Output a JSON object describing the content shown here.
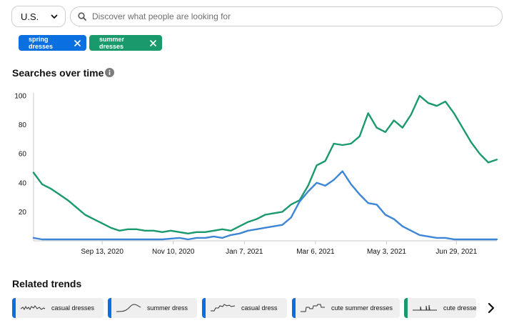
{
  "region": {
    "label": "U.S."
  },
  "search": {
    "placeholder": "Discover what people are looking for"
  },
  "chips": [
    {
      "label": "spring dresses",
      "color": "#0a6fe0"
    },
    {
      "label": "summer dresses",
      "color": "#1a9a6c"
    }
  ],
  "searches_section": {
    "title": "Searches over time"
  },
  "related_section": {
    "title": "Related trends"
  },
  "related_trends": [
    {
      "label": "casual dresses",
      "color": "#0a6fe0"
    },
    {
      "label": "summer dress",
      "color": "#0a6fe0"
    },
    {
      "label": "casual dress",
      "color": "#0a6fe0"
    },
    {
      "label": "cute summer dresses",
      "color": "#0a6fe0"
    },
    {
      "label": "cute dresses",
      "color": "#1a9a6c"
    }
  ],
  "chart_data": {
    "type": "line",
    "x_tick_labels": [
      "Sep 13, 2020",
      "Nov 10, 2020",
      "Jan 7, 2021",
      "Mar 6, 2021",
      "May 3, 2021",
      "Jun 29, 2021"
    ],
    "y_ticks": [
      20,
      40,
      60,
      80,
      100
    ],
    "ylim": [
      0,
      100
    ],
    "xlim": [
      "2020-07-19",
      "2021-08-01"
    ],
    "grid": false,
    "series": [
      {
        "name": "summer dresses",
        "color": "#1a9a6c",
        "points": [
          [
            "2020-07-19",
            47
          ],
          [
            "2020-07-26",
            39
          ],
          [
            "2020-08-02",
            36
          ],
          [
            "2020-08-09",
            32
          ],
          [
            "2020-08-16",
            28
          ],
          [
            "2020-08-23",
            23
          ],
          [
            "2020-08-30",
            18
          ],
          [
            "2020-09-06",
            15
          ],
          [
            "2020-09-13",
            12
          ],
          [
            "2020-09-20",
            9
          ],
          [
            "2020-09-27",
            7
          ],
          [
            "2020-10-04",
            8
          ],
          [
            "2020-10-11",
            8
          ],
          [
            "2020-10-18",
            7
          ],
          [
            "2020-10-25",
            7
          ],
          [
            "2020-11-01",
            6
          ],
          [
            "2020-11-08",
            7
          ],
          [
            "2020-11-15",
            6
          ],
          [
            "2020-11-22",
            5
          ],
          [
            "2020-11-29",
            6
          ],
          [
            "2020-12-06",
            6
          ],
          [
            "2020-12-13",
            7
          ],
          [
            "2020-12-20",
            8
          ],
          [
            "2020-12-27",
            7
          ],
          [
            "2021-01-03",
            10
          ],
          [
            "2021-01-10",
            13
          ],
          [
            "2021-01-17",
            15
          ],
          [
            "2021-01-24",
            18
          ],
          [
            "2021-01-31",
            19
          ],
          [
            "2021-02-07",
            20
          ],
          [
            "2021-02-14",
            25
          ],
          [
            "2021-02-21",
            28
          ],
          [
            "2021-02-28",
            38
          ],
          [
            "2021-03-07",
            52
          ],
          [
            "2021-03-14",
            55
          ],
          [
            "2021-03-21",
            67
          ],
          [
            "2021-03-28",
            66
          ],
          [
            "2021-04-04",
            67
          ],
          [
            "2021-04-11",
            72
          ],
          [
            "2021-04-18",
            88
          ],
          [
            "2021-04-25",
            78
          ],
          [
            "2021-05-02",
            75
          ],
          [
            "2021-05-09",
            83
          ],
          [
            "2021-05-16",
            78
          ],
          [
            "2021-05-23",
            87
          ],
          [
            "2021-05-30",
            100
          ],
          [
            "2021-06-06",
            95
          ],
          [
            "2021-06-13",
            93
          ],
          [
            "2021-06-20",
            96
          ],
          [
            "2021-06-27",
            88
          ],
          [
            "2021-07-04",
            78
          ],
          [
            "2021-07-11",
            68
          ],
          [
            "2021-07-18",
            60
          ],
          [
            "2021-07-25",
            54
          ],
          [
            "2021-08-01",
            56
          ]
        ]
      },
      {
        "name": "spring dresses",
        "color": "#3d86d6",
        "points": [
          [
            "2020-07-19",
            2
          ],
          [
            "2020-07-26",
            1
          ],
          [
            "2020-08-09",
            1
          ],
          [
            "2020-09-06",
            1
          ],
          [
            "2020-10-04",
            1
          ],
          [
            "2020-11-01",
            1
          ],
          [
            "2020-11-15",
            2
          ],
          [
            "2020-11-22",
            1
          ],
          [
            "2020-11-29",
            2
          ],
          [
            "2020-12-06",
            2
          ],
          [
            "2020-12-13",
            3
          ],
          [
            "2020-12-20",
            2
          ],
          [
            "2020-12-27",
            4
          ],
          [
            "2021-01-03",
            5
          ],
          [
            "2021-01-10",
            7
          ],
          [
            "2021-01-17",
            8
          ],
          [
            "2021-01-24",
            9
          ],
          [
            "2021-01-31",
            10
          ],
          [
            "2021-02-07",
            11
          ],
          [
            "2021-02-14",
            16
          ],
          [
            "2021-02-21",
            27
          ],
          [
            "2021-02-28",
            34
          ],
          [
            "2021-03-07",
            40
          ],
          [
            "2021-03-14",
            38
          ],
          [
            "2021-03-21",
            42
          ],
          [
            "2021-03-28",
            48
          ],
          [
            "2021-04-04",
            39
          ],
          [
            "2021-04-11",
            32
          ],
          [
            "2021-04-18",
            26
          ],
          [
            "2021-04-25",
            25
          ],
          [
            "2021-05-02",
            18
          ],
          [
            "2021-05-09",
            15
          ],
          [
            "2021-05-16",
            10
          ],
          [
            "2021-05-23",
            7
          ],
          [
            "2021-05-30",
            4
          ],
          [
            "2021-06-06",
            3
          ],
          [
            "2021-06-13",
            2
          ],
          [
            "2021-06-20",
            2
          ],
          [
            "2021-06-27",
            1
          ],
          [
            "2021-07-11",
            1
          ],
          [
            "2021-08-01",
            1
          ]
        ]
      }
    ]
  }
}
